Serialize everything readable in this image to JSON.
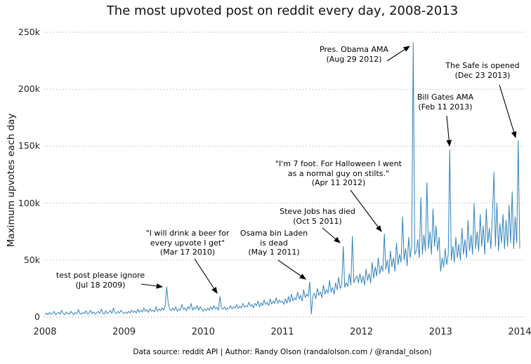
{
  "title": "The most upvoted post on reddit every day, 2008-2013",
  "footer": "Data source: reddit API | Author: Randy Olson (randalolson.com / @randal_olson)",
  "chart_data": {
    "type": "line",
    "title": "The most upvoted post on reddit every day, 2008-2013",
    "xlabel": "",
    "ylabel": "Maximum upvotes each day",
    "x_range": [
      2008,
      2014
    ],
    "ylim_k": [
      0,
      250
    ],
    "grid": "horizontal-dotted",
    "line_color": "#3182bd",
    "grid_color": "#b0b0b0",
    "unit": "thousands of upvotes",
    "xticks": [
      "2008",
      "2009",
      "2010",
      "2011",
      "2012",
      "2013",
      "2014"
    ],
    "yticks": [
      {
        "v": 0,
        "label": "0"
      },
      {
        "v": 50,
        "label": "50k"
      },
      {
        "v": 100,
        "label": "100k"
      },
      {
        "v": 150,
        "label": "150k"
      },
      {
        "v": 200,
        "label": "200k"
      },
      {
        "v": 250,
        "label": "250k"
      }
    ],
    "values_k": [
      2,
      3.5,
      2,
      4,
      2.5,
      3,
      5,
      2,
      3,
      4,
      2.5,
      6,
      3,
      2,
      4.5,
      3,
      2.5,
      5,
      3.5,
      2,
      4,
      3,
      6.5,
      3,
      2.5,
      4,
      3,
      5.5,
      2.5,
      3.5,
      6,
      3,
      4.5,
      2.5,
      3.5,
      5,
      3,
      7,
      3.5,
      2.5,
      5.5,
      3,
      4,
      6,
      3,
      8,
      4,
      3,
      5,
      3.5,
      6,
      4,
      3,
      4.5,
      3,
      5,
      3.5,
      6,
      4,
      5.5,
      3.5,
      7,
      4,
      6,
      4.5,
      8,
      5,
      6.5,
      4,
      7.5,
      5,
      6,
      4.5,
      9,
      5,
      7,
      5.5,
      8,
      6,
      10,
      26.5,
      12,
      7,
      5.5,
      8,
      6,
      9,
      5,
      7,
      6,
      11,
      6.5,
      8,
      5.5,
      9,
      7,
      12,
      6,
      8.5,
      7,
      10,
      6,
      9,
      7.5,
      5,
      7,
      5.5,
      8,
      6,
      9,
      6.5,
      10,
      7,
      8.5,
      6,
      18,
      8,
      7,
      9,
      6.5,
      8,
      7.5,
      10,
      7,
      9,
      8,
      11,
      7.5,
      9.5,
      8,
      12,
      8.5,
      10,
      9,
      13,
      9.5,
      11,
      8,
      12,
      10,
      14,
      9,
      12.5,
      10,
      15,
      11,
      13,
      10,
      16,
      11.5,
      14,
      12,
      17,
      12,
      15,
      13,
      14,
      11,
      16,
      12,
      18,
      13,
      20,
      14,
      17,
      15,
      22,
      16,
      19,
      14,
      24,
      17,
      20,
      18,
      31,
      2.5,
      18,
      21,
      16,
      25,
      19,
      22,
      17,
      28,
      20,
      24,
      21,
      32,
      22,
      26,
      20,
      30,
      24,
      35,
      25,
      28,
      62,
      26,
      30,
      27,
      38,
      28,
      71,
      30,
      34,
      36,
      30,
      38,
      30,
      36,
      28,
      42,
      32,
      38,
      30,
      48,
      34,
      44,
      36,
      52,
      38,
      45,
      40,
      73,
      42,
      50,
      38,
      58,
      44,
      52,
      40,
      65,
      46,
      55,
      48,
      88,
      50,
      60,
      45,
      70,
      52,
      62,
      241,
      55,
      58,
      68,
      52,
      105,
      55,
      72,
      58,
      118,
      60,
      75,
      55,
      95,
      62,
      80,
      58,
      70,
      40,
      52,
      44,
      60,
      46,
      55,
      147,
      50,
      62,
      48,
      70,
      52,
      64,
      50,
      78,
      55,
      68,
      52,
      85,
      58,
      72,
      55,
      100,
      60,
      75,
      58,
      90,
      62,
      80,
      55,
      95,
      65,
      78,
      60,
      88,
      127,
      62,
      100,
      58,
      82,
      65,
      90,
      60,
      85,
      62,
      98,
      65,
      110,
      60,
      88,
      65,
      155,
      60
    ]
  },
  "annotations": [
    {
      "id": "test-post",
      "lines": [
        "test post please ignore",
        "(Jul 18 2009)"
      ],
      "date": "Jul 18 2009",
      "target_index": 80,
      "value_k": 26.5
    },
    {
      "id": "beer",
      "lines": [
        "\"I will drink a beer for",
        "every upvote I get\"",
        "(Mar 17 2010)"
      ],
      "date": "Mar 17 2010",
      "target_index": 115,
      "value_k": 18
    },
    {
      "id": "osama",
      "lines": [
        "Osama bin Laden",
        "is dead",
        "(May 1 2011)"
      ],
      "date": "May 1 2011",
      "target_index": 174,
      "value_k": 31
    },
    {
      "id": "steve-jobs",
      "lines": [
        "Steve Jobs has died",
        "(Oct 5 2011)"
      ],
      "date": "Oct 5 2011",
      "target_index": 196,
      "value_k": 62
    },
    {
      "id": "stilts",
      "lines": [
        "\"I'm 7 foot. For Halloween I went",
        "as a normal guy on stilts.\"",
        "(Apr 11 2012)"
      ],
      "date": "Apr 11 2012",
      "target_index": 223,
      "value_k": 73
    },
    {
      "id": "obama-ama",
      "lines": [
        "Pres. Obama AMA",
        "(Aug 29 2012)"
      ],
      "date": "Aug 29 2012",
      "target_index": 242,
      "value_k": 241
    },
    {
      "id": "bill-gates-ama",
      "lines": [
        "Bill Gates AMA",
        "(Feb 11 2013)"
      ],
      "date": "Feb 11 2013",
      "target_index": 266,
      "value_k": 147
    },
    {
      "id": "the-safe",
      "lines": [
        "The Safe is opened",
        "(Dec 23 2013)"
      ],
      "date": "Dec 23 2013",
      "target_index": 311,
      "value_k": 155
    }
  ]
}
